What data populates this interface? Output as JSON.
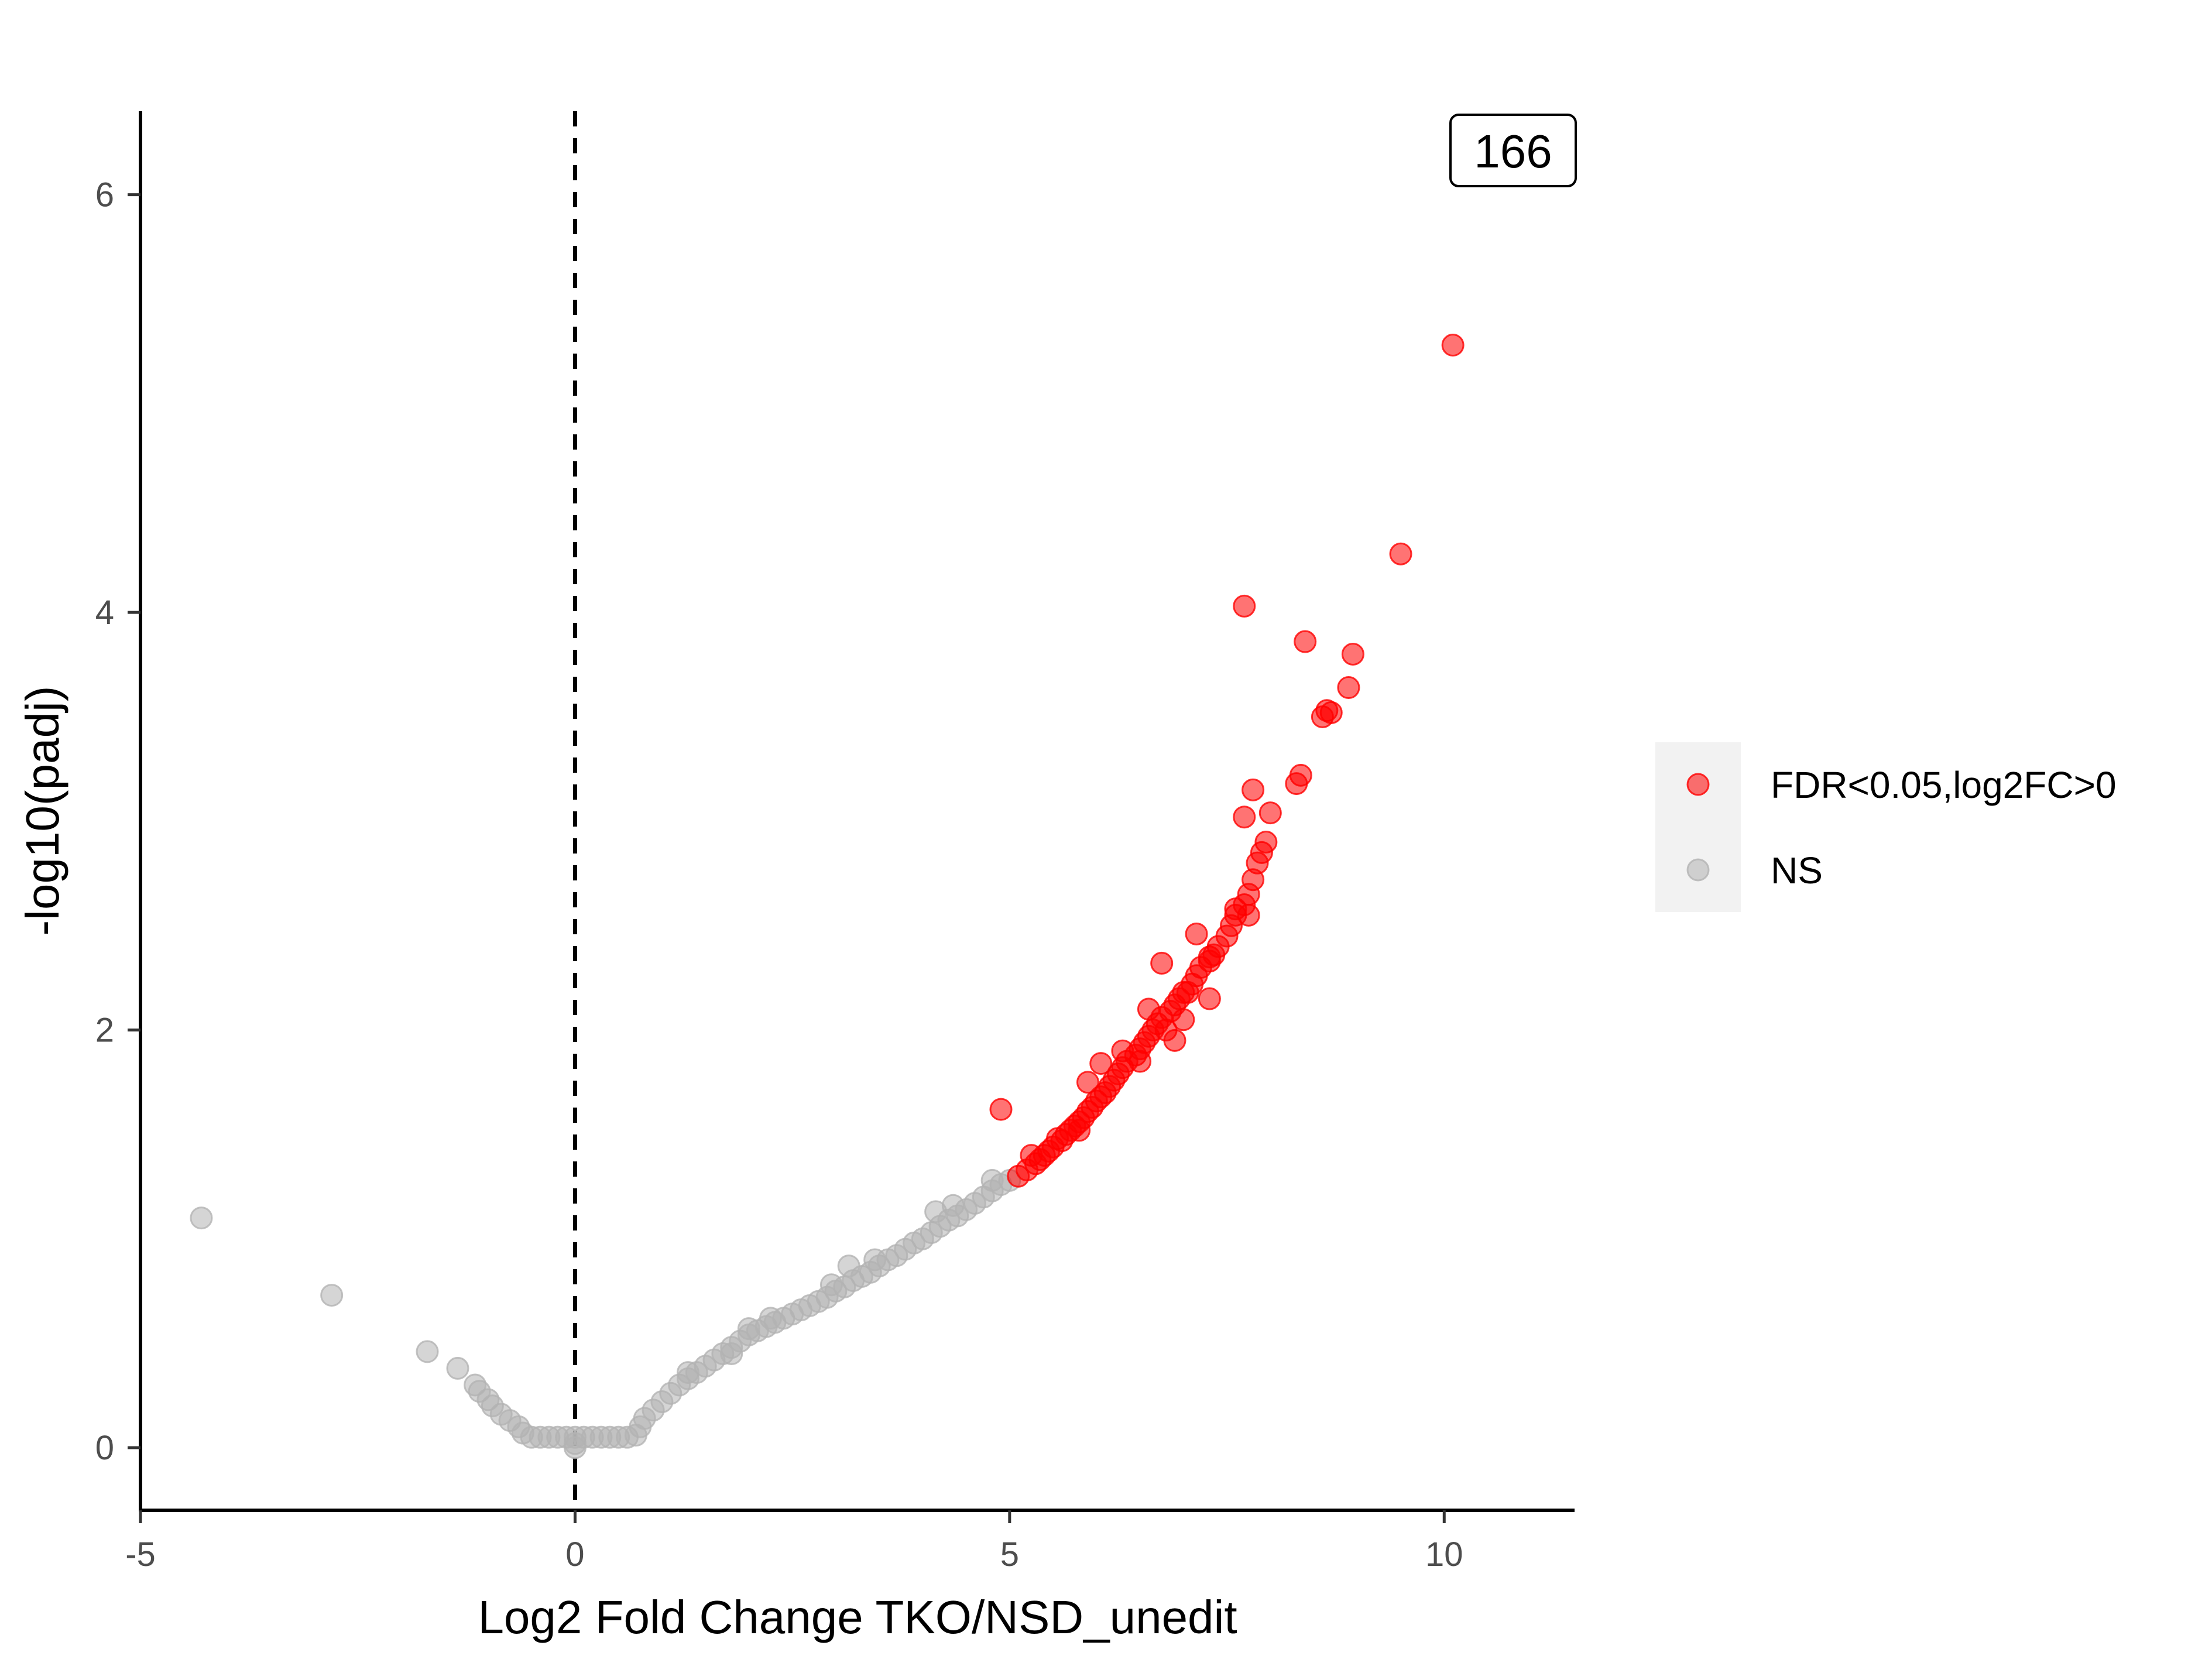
{
  "chart_data": {
    "type": "scatter",
    "title": "",
    "xlabel": "Log2 Fold Change TKO/NSD_unedit",
    "ylabel": "-log10(padj)",
    "xlim": [
      -5,
      11.5
    ],
    "ylim": [
      -0.3,
      6.4
    ],
    "x_ticks": [
      "-5",
      "0",
      "5",
      "10"
    ],
    "y_ticks": [
      "0",
      "2",
      "4",
      "6"
    ],
    "vline_x": 0,
    "grid": false,
    "legend_position": "right",
    "annotation": "166",
    "colors": {
      "sig": "#ff0000",
      "ns": "#b3b3b3"
    },
    "series": [
      {
        "name": "FDR<0.05,log2FC>0",
        "color": "#ff0000",
        "points": [
          [
            5.1,
            1.3
          ],
          [
            5.2,
            1.33
          ],
          [
            5.3,
            1.36
          ],
          [
            5.35,
            1.38
          ],
          [
            5.4,
            1.4
          ],
          [
            5.45,
            1.42
          ],
          [
            5.5,
            1.44
          ],
          [
            5.6,
            1.47
          ],
          [
            5.65,
            1.5
          ],
          [
            5.7,
            1.52
          ],
          [
            5.75,
            1.54
          ],
          [
            5.8,
            1.56
          ],
          [
            5.85,
            1.58
          ],
          [
            5.9,
            1.61
          ],
          [
            5.95,
            1.63
          ],
          [
            6.0,
            1.66
          ],
          [
            6.05,
            1.68
          ],
          [
            6.1,
            1.7
          ],
          [
            6.15,
            1.73
          ],
          [
            6.2,
            1.76
          ],
          [
            6.25,
            1.79
          ],
          [
            6.3,
            1.82
          ],
          [
            6.35,
            1.85
          ],
          [
            6.45,
            1.88
          ],
          [
            6.5,
            1.91
          ],
          [
            6.55,
            1.94
          ],
          [
            6.6,
            1.97
          ],
          [
            6.65,
            2.0
          ],
          [
            6.7,
            2.03
          ],
          [
            6.75,
            2.06
          ],
          [
            6.85,
            2.09
          ],
          [
            6.9,
            2.12
          ],
          [
            6.95,
            2.15
          ],
          [
            7.0,
            2.18
          ],
          [
            7.1,
            2.22
          ],
          [
            7.15,
            2.26
          ],
          [
            7.2,
            2.3
          ],
          [
            7.3,
            2.33
          ],
          [
            7.35,
            2.36
          ],
          [
            7.4,
            2.4
          ],
          [
            7.5,
            2.45
          ],
          [
            7.55,
            2.5
          ],
          [
            7.6,
            2.55
          ],
          [
            7.7,
            2.6
          ],
          [
            7.75,
            2.65
          ],
          [
            7.8,
            2.72
          ],
          [
            7.85,
            2.8
          ],
          [
            7.9,
            2.85
          ],
          [
            7.95,
            2.9
          ],
          [
            4.9,
            1.62
          ],
          [
            5.25,
            1.4
          ],
          [
            5.55,
            1.48
          ],
          [
            5.8,
            1.52
          ],
          [
            5.9,
            1.75
          ],
          [
            6.05,
            1.84
          ],
          [
            6.3,
            1.9
          ],
          [
            6.5,
            1.85
          ],
          [
            6.6,
            2.1
          ],
          [
            6.75,
            2.32
          ],
          [
            7.3,
            2.15
          ],
          [
            7.3,
            2.35
          ],
          [
            7.15,
            2.46
          ],
          [
            7.6,
            2.58
          ],
          [
            7.75,
            2.55
          ],
          [
            7.7,
            3.02
          ],
          [
            7.8,
            3.15
          ],
          [
            8.0,
            3.04
          ],
          [
            8.3,
            3.18
          ],
          [
            8.35,
            3.22
          ],
          [
            8.6,
            3.5
          ],
          [
            8.65,
            3.53
          ],
          [
            8.7,
            3.52
          ],
          [
            8.9,
            3.64
          ],
          [
            8.95,
            3.8
          ],
          [
            8.4,
            3.86
          ],
          [
            7.7,
            4.03
          ],
          [
            9.5,
            4.28
          ],
          [
            10.1,
            5.28
          ],
          [
            6.8,
            2.0
          ],
          [
            6.9,
            1.95
          ],
          [
            7.0,
            2.05
          ],
          [
            7.05,
            2.18
          ]
        ]
      },
      {
        "name": "NS",
        "color": "#b3b3b3",
        "points": [
          [
            -4.3,
            1.1
          ],
          [
            -2.8,
            0.73
          ],
          [
            -1.7,
            0.46
          ],
          [
            -1.35,
            0.38
          ],
          [
            -1.15,
            0.3
          ],
          [
            -1.1,
            0.27
          ],
          [
            -1.0,
            0.23
          ],
          [
            -0.95,
            0.2
          ],
          [
            -0.85,
            0.16
          ],
          [
            -0.75,
            0.13
          ],
          [
            -0.65,
            0.1
          ],
          [
            -0.6,
            0.07
          ],
          [
            -0.5,
            0.05
          ],
          [
            -0.4,
            0.05
          ],
          [
            -0.3,
            0.05
          ],
          [
            -0.2,
            0.05
          ],
          [
            -0.1,
            0.05
          ],
          [
            0.0,
            0.05
          ],
          [
            0.1,
            0.05
          ],
          [
            0.2,
            0.05
          ],
          [
            0.3,
            0.05
          ],
          [
            0.4,
            0.05
          ],
          [
            0.5,
            0.05
          ],
          [
            0.6,
            0.05
          ],
          [
            0.7,
            0.06
          ],
          [
            0.0,
            0.0
          ],
          [
            0.0,
            0.02
          ],
          [
            0.75,
            0.1
          ],
          [
            0.8,
            0.14
          ],
          [
            0.9,
            0.18
          ],
          [
            1.0,
            0.22
          ],
          [
            1.1,
            0.26
          ],
          [
            1.2,
            0.3
          ],
          [
            1.3,
            0.33
          ],
          [
            1.4,
            0.36
          ],
          [
            1.5,
            0.39
          ],
          [
            1.6,
            0.42
          ],
          [
            1.7,
            0.45
          ],
          [
            1.8,
            0.48
          ],
          [
            1.9,
            0.51
          ],
          [
            2.0,
            0.54
          ],
          [
            2.1,
            0.56
          ],
          [
            2.2,
            0.58
          ],
          [
            2.3,
            0.6
          ],
          [
            2.4,
            0.62
          ],
          [
            2.5,
            0.64
          ],
          [
            2.6,
            0.66
          ],
          [
            2.7,
            0.68
          ],
          [
            2.8,
            0.7
          ],
          [
            2.9,
            0.72
          ],
          [
            3.0,
            0.75
          ],
          [
            3.1,
            0.77
          ],
          [
            3.2,
            0.8
          ],
          [
            3.3,
            0.82
          ],
          [
            3.4,
            0.84
          ],
          [
            3.5,
            0.87
          ],
          [
            3.6,
            0.9
          ],
          [
            3.7,
            0.92
          ],
          [
            3.8,
            0.95
          ],
          [
            3.9,
            0.98
          ],
          [
            4.0,
            1.0
          ],
          [
            4.1,
            1.03
          ],
          [
            4.2,
            1.06
          ],
          [
            4.3,
            1.09
          ],
          [
            4.4,
            1.11
          ],
          [
            4.5,
            1.14
          ],
          [
            4.6,
            1.17
          ],
          [
            4.7,
            1.2
          ],
          [
            4.8,
            1.23
          ],
          [
            4.9,
            1.26
          ],
          [
            5.0,
            1.28
          ],
          [
            1.3,
            0.36
          ],
          [
            1.8,
            0.45
          ],
          [
            2.0,
            0.57
          ],
          [
            2.25,
            0.62
          ],
          [
            2.95,
            0.78
          ],
          [
            3.15,
            0.87
          ],
          [
            3.45,
            0.9
          ],
          [
            4.15,
            1.13
          ],
          [
            4.35,
            1.16
          ],
          [
            4.8,
            1.28
          ]
        ]
      }
    ]
  }
}
